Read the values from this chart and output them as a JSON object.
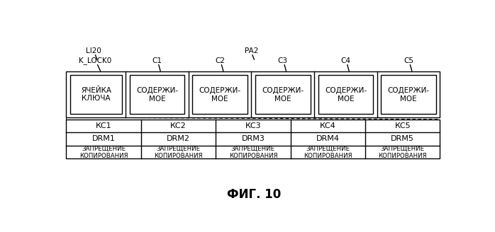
{
  "background_color": "#ffffff",
  "fig_title": "ФИГ. 10",
  "fig_title_fontsize": 12,
  "label_LI20": "LI20",
  "label_PA2": "PA2",
  "top_block_label": "K_LOCK0",
  "top_block_inner_label": "ЯЧЕЙКА\nКЛЮЧА",
  "content_labels": [
    "C1",
    "C2",
    "C3",
    "C4",
    "C5"
  ],
  "content_inner_labels": [
    "СОДЕРЖИ-\nМОЕ",
    "СОДЕРЖИ-\nМОЕ",
    "СОДЕРЖИ-\nМОЕ",
    "СОДЕРЖИ-\nМОЕ",
    "СОДЕРЖИ-\nМОЕ"
  ],
  "kc_labels": [
    "КС1",
    "КС2",
    "КС3",
    "КС4",
    "КС5"
  ],
  "drm_labels": [
    "DRM1",
    "DRM2",
    "DRM3",
    "DRM4",
    "DRM5"
  ],
  "copy_labels": [
    "ЗАПРЕЩЕНИЕ\nКОПИРОВАНИЯ",
    "ЗАПРЕЩЕНИЕ\nКОПИРОВАНИЯ",
    "ЗАПРЕЩЕНИЕ\nКОПИРОВАНИЯ",
    "ЗАПРЕЩЕНИЕ\nКОПИРОВАНИЯ",
    "ЗАПРЕЩЕНИЕ\nКОПИРОВАНИЯ"
  ],
  "font_color": "#000000",
  "label_fontsize": 7.5,
  "inner_fontsize": 7.5,
  "small_fontsize": 6.2,
  "kc_fontsize": 8
}
